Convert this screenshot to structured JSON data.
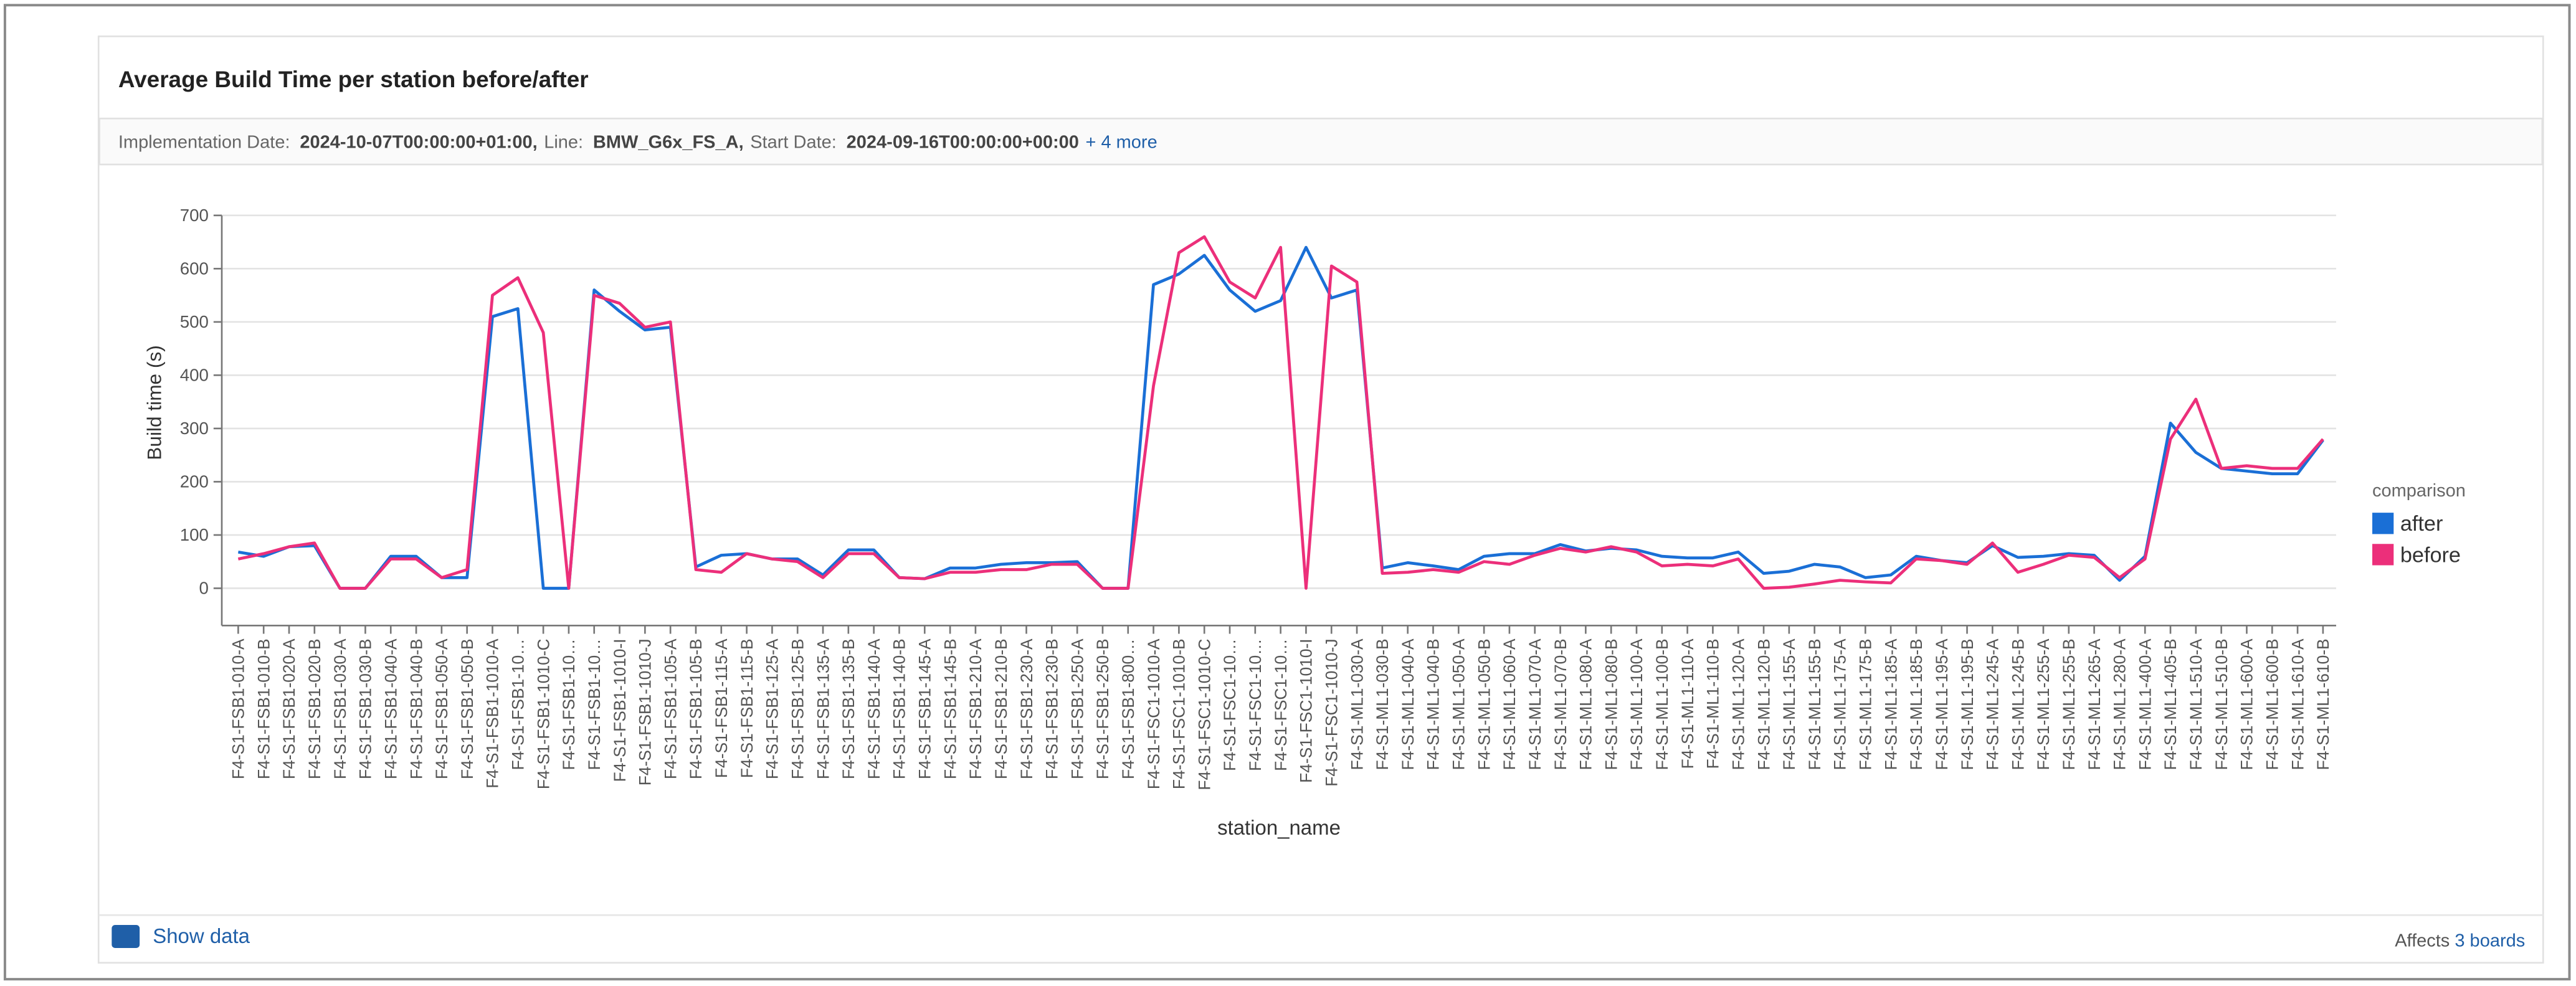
{
  "header": {
    "title": "Average Build Time per station before/after"
  },
  "filters": {
    "items": [
      {
        "label": "Implementation Date:",
        "value": "2024-10-07T00:00:00+01:00,"
      },
      {
        "label": "Line:",
        "value": "BMW_G6x_FS_A,"
      },
      {
        "label": "Start Date:",
        "value": "2024-09-16T00:00:00+00:00"
      }
    ],
    "more": "+ 4 more"
  },
  "chart_data": {
    "type": "line",
    "x_label": "station_name",
    "y_label": "Build time (s)",
    "ylim": [
      -70,
      700
    ],
    "yticks": [
      0,
      100,
      200,
      300,
      400,
      500,
      600,
      700
    ],
    "grid": true,
    "legend": {
      "title": "comparison",
      "position": "right"
    },
    "categories": [
      "F4-S1-FSB1-010-A",
      "F4-S1-FSB1-010-B",
      "F4-S1-FSB1-020-A",
      "F4-S1-FSB1-020-B",
      "F4-S1-FSB1-030-A",
      "F4-S1-FSB1-030-B",
      "F4-S1-FSB1-040-A",
      "F4-S1-FSB1-040-B",
      "F4-S1-FSB1-050-A",
      "F4-S1-FSB1-050-B",
      "F4-S1-FSB1-1010-A",
      "F4-S1-FSB1-10…",
      "F4-S1-FSB1-1010-C",
      "F4-S1-FSB1-10…",
      "F4-S1-FSB1-10…",
      "F4-S1-FSB1-1010-I",
      "F4-S1-FSB1-1010-J",
      "F4-S1-FSB1-105-A",
      "F4-S1-FSB1-105-B",
      "F4-S1-FSB1-115-A",
      "F4-S1-FSB1-115-B",
      "F4-S1-FSB1-125-A",
      "F4-S1-FSB1-125-B",
      "F4-S1-FSB1-135-A",
      "F4-S1-FSB1-135-B",
      "F4-S1-FSB1-140-A",
      "F4-S1-FSB1-140-B",
      "F4-S1-FSB1-145-A",
      "F4-S1-FSB1-145-B",
      "F4-S1-FSB1-210-A",
      "F4-S1-FSB1-210-B",
      "F4-S1-FSB1-230-A",
      "F4-S1-FSB1-230-B",
      "F4-S1-FSB1-250-A",
      "F4-S1-FSB1-250-B",
      "F4-S1-FSB1-800…",
      "F4-S1-FSC1-1010-A",
      "F4-S1-FSC1-1010-B",
      "F4-S1-FSC1-1010-C",
      "F4-S1-FSC1-10…",
      "F4-S1-FSC1-10…",
      "F4-S1-FSC1-10…",
      "F4-S1-FSC1-1010-I",
      "F4-S1-FSC1-1010-J",
      "F4-S1-ML1-030-A",
      "F4-S1-ML1-030-B",
      "F4-S1-ML1-040-A",
      "F4-S1-ML1-040-B",
      "F4-S1-ML1-050-A",
      "F4-S1-ML1-050-B",
      "F4-S1-ML1-060-A",
      "F4-S1-ML1-070-A",
      "F4-S1-ML1-070-B",
      "F4-S1-ML1-080-A",
      "F4-S1-ML1-080-B",
      "F4-S1-ML1-100-A",
      "F4-S1-ML1-100-B",
      "F4-S1-ML1-110-A",
      "F4-S1-ML1-110-B",
      "F4-S1-ML1-120-A",
      "F4-S1-ML1-120-B",
      "F4-S1-ML1-155-A",
      "F4-S1-ML1-155-B",
      "F4-S1-ML1-175-A",
      "F4-S1-ML1-175-B",
      "F4-S1-ML1-185-A",
      "F4-S1-ML1-185-B",
      "F4-S1-ML1-195-A",
      "F4-S1-ML1-195-B",
      "F4-S1-ML1-245-A",
      "F4-S1-ML1-245-B",
      "F4-S1-ML1-255-A",
      "F4-S1-ML1-255-B",
      "F4-S1-ML1-265-A",
      "F4-S1-ML1-280-A",
      "F4-S1-ML1-400-A",
      "F4-S1-ML1-405-B",
      "F4-S1-ML1-510-A",
      "F4-S1-ML1-510-B",
      "F4-S1-ML1-600-A",
      "F4-S1-ML1-600-B",
      "F4-S1-ML1-610-A",
      "F4-S1-ML1-610-B"
    ],
    "series": [
      {
        "name": "after",
        "color": "#1a6fd6",
        "values": [
          68,
          60,
          78,
          80,
          0,
          0,
          60,
          60,
          20,
          20,
          510,
          525,
          0,
          0,
          560,
          520,
          485,
          490,
          40,
          62,
          65,
          55,
          55,
          25,
          72,
          72,
          20,
          18,
          38,
          38,
          45,
          48,
          48,
          50,
          0,
          0,
          570,
          590,
          625,
          560,
          520,
          540,
          640,
          545,
          560,
          38,
          48,
          42,
          35,
          60,
          65,
          65,
          82,
          70,
          75,
          72,
          60,
          57,
          57,
          68,
          28,
          32,
          45,
          40,
          20,
          25,
          60,
          52,
          48,
          80,
          58,
          60,
          65,
          62,
          15,
          60,
          310,
          255,
          225,
          220,
          215,
          215,
          278
        ]
      },
      {
        "name": "before",
        "color": "#ec2f7a",
        "values": [
          55,
          65,
          78,
          85,
          0,
          0,
          55,
          55,
          20,
          35,
          550,
          583,
          480,
          0,
          550,
          535,
          490,
          500,
          35,
          30,
          65,
          55,
          50,
          20,
          65,
          65,
          20,
          18,
          30,
          30,
          35,
          35,
          45,
          45,
          0,
          0,
          380,
          630,
          660,
          575,
          545,
          640,
          0,
          605,
          575,
          28,
          30,
          35,
          30,
          50,
          45,
          62,
          75,
          68,
          78,
          68,
          42,
          45,
          42,
          55,
          0,
          2,
          8,
          15,
          12,
          10,
          55,
          52,
          45,
          85,
          30,
          45,
          62,
          58,
          20,
          55,
          280,
          355,
          225,
          230,
          225,
          225,
          280
        ]
      }
    ]
  },
  "footer": {
    "show_data": "Show data",
    "affects": "Affects",
    "boards": "3 boards"
  }
}
